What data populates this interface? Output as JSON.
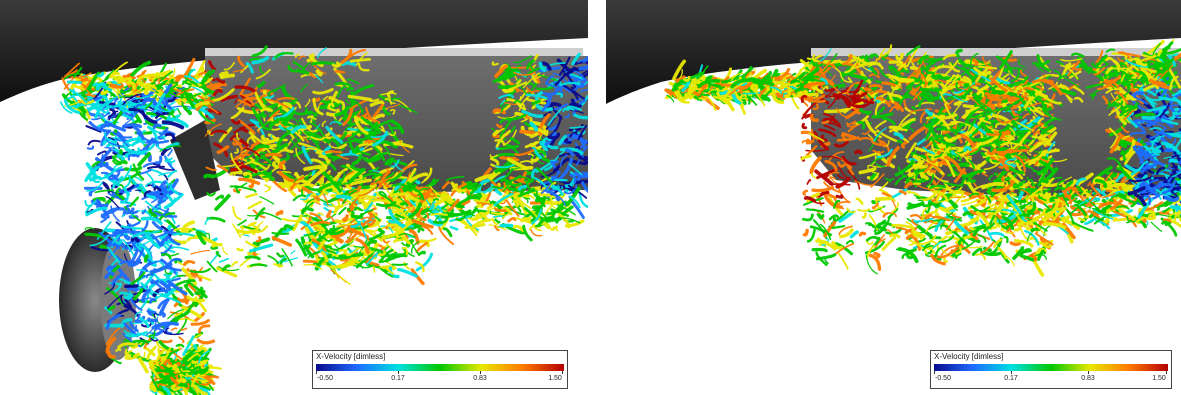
{
  "panels": [
    {
      "id": "left",
      "colorbar": {
        "title": "X-Velocity [dimless]",
        "ticks": [
          "-0.50",
          "0.17",
          "0.83",
          "1.50"
        ],
        "min": -0.5,
        "max": 1.5,
        "colors": [
          "#0a0a8c",
          "#1e6cff",
          "#00e0e0",
          "#00c800",
          "#e8e800",
          "#ff7a00",
          "#b40000"
        ]
      }
    },
    {
      "id": "right",
      "colorbar": {
        "title": "X-Velocity [dimless]",
        "ticks": [
          "-0.50",
          "0.17",
          "0.83",
          "1.50"
        ],
        "min": -0.5,
        "max": 1.5,
        "colors": [
          "#0a0a8c",
          "#1e6cff",
          "#00e0e0",
          "#00c800",
          "#e8e800",
          "#ff7a00",
          "#b40000"
        ]
      }
    }
  ]
}
